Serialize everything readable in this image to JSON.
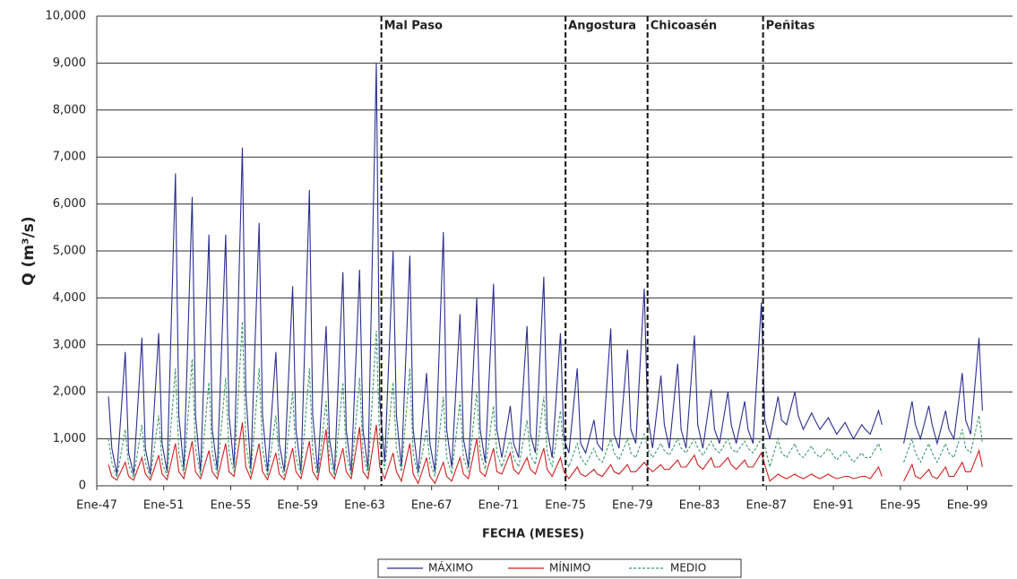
{
  "chart_data": {
    "type": "line",
    "xlabel": "FECHA (MESES)",
    "ylabel": "Q (m³/s)",
    "x": [
      1947.7,
      1947.9,
      1948.2,
      1948.7,
      1948.9,
      1949.2,
      1949.7,
      1949.9,
      1950.2,
      1950.7,
      1950.9,
      1951.2,
      1951.7,
      1951.9,
      1952.2,
      1952.7,
      1952.9,
      1953.2,
      1953.7,
      1953.9,
      1954.2,
      1954.7,
      1954.9,
      1955.2,
      1955.7,
      1955.9,
      1956.2,
      1956.7,
      1956.9,
      1957.2,
      1957.7,
      1957.9,
      1958.2,
      1958.7,
      1958.9,
      1959.2,
      1959.7,
      1959.9,
      1960.2,
      1960.7,
      1960.9,
      1961.2,
      1961.7,
      1961.9,
      1962.2,
      1962.7,
      1962.9,
      1963.2,
      1963.7,
      1963.9,
      1964.2,
      1964.7,
      1964.9,
      1965.2,
      1965.7,
      1965.9,
      1966.2,
      1966.7,
      1966.9,
      1967.2,
      1967.7,
      1967.9,
      1968.2,
      1968.7,
      1968.9,
      1969.2,
      1969.7,
      1969.9,
      1970.2,
      1970.7,
      1970.9,
      1971.2,
      1971.7,
      1971.9,
      1972.2,
      1972.7,
      1972.9,
      1973.2,
      1973.7,
      1973.9,
      1974.2,
      1974.7,
      1974.9,
      1975.2,
      1975.7,
      1975.9,
      1976.2,
      1976.7,
      1976.9,
      1977.2,
      1977.7,
      1977.9,
      1978.2,
      1978.7,
      1978.9,
      1979.2,
      1979.7,
      1979.9,
      1980.2,
      1980.7,
      1980.9,
      1981.2,
      1981.7,
      1981.9,
      1982.2,
      1982.7,
      1982.9,
      1983.2,
      1983.7,
      1983.9,
      1984.2,
      1984.7,
      1984.9,
      1985.2,
      1985.7,
      1985.9,
      1986.2,
      1986.7,
      1986.9,
      1987.2,
      1987.7,
      1987.9,
      1988.2,
      1988.7,
      1988.9,
      1989.2,
      1989.7,
      1989.9,
      1990.2,
      1990.7,
      1990.9,
      1991.2,
      1991.7,
      1991.9,
      1992.2,
      1992.7,
      1992.9,
      1993.2,
      1993.7,
      1993.9,
      1994.2,
      1994.7,
      1994.9,
      1995.2,
      1995.7,
      1995.9,
      1996.2,
      1996.7,
      1996.9,
      1997.2,
      1997.7,
      1997.9,
      1998.2,
      1998.7,
      1998.9,
      1999.2,
      1999.7,
      1999.9
    ],
    "series": [
      {
        "name": "MÁXIMO",
        "color": "#2b2f8f",
        "line_style": "solid",
        "values": [
          1900,
          800,
          250,
          2850,
          700,
          250,
          3150,
          800,
          250,
          3250,
          900,
          300,
          6650,
          1500,
          350,
          6150,
          1500,
          300,
          5350,
          1200,
          350,
          5350,
          1500,
          400,
          7200,
          2000,
          350,
          5600,
          1500,
          300,
          2850,
          900,
          300,
          4250,
          1200,
          300,
          6300,
          1500,
          300,
          3400,
          1000,
          300,
          4550,
          1200,
          300,
          4600,
          1200,
          350,
          9000,
          1800,
          500,
          5000,
          1500,
          400,
          4900,
          1200,
          300,
          2400,
          900,
          300,
          5400,
          1200,
          400,
          3650,
          1000,
          400,
          4000,
          1200,
          500,
          4300,
          1200,
          600,
          1700,
          900,
          600,
          3400,
          1100,
          700,
          4450,
          1200,
          600,
          3250,
          1000,
          700,
          2500,
          900,
          700,
          1400,
          900,
          750,
          3350,
          1100,
          800,
          2900,
          1200,
          900,
          4200,
          1500,
          800,
          2350,
          1300,
          800,
          2600,
          1200,
          800,
          3200,
          1300,
          800,
          2050,
          1200,
          900,
          2000,
          1300,
          900,
          1800,
          1200,
          900,
          3900,
          1400,
          1000,
          1900,
          1400,
          1300,
          2000,
          1500,
          1200,
          1550,
          1400,
          1200,
          1450,
          1300,
          1100,
          1350,
          1200,
          1000,
          1300,
          1200,
          1100,
          1600,
          1300,
          null,
          null,
          null,
          900,
          1800,
          1300,
          1000,
          1700,
          1300,
          900,
          1600,
          1200,
          1000,
          2400,
          1400,
          1100,
          3150,
          1600
        ]
      },
      {
        "name": "MÍNIMO",
        "color": "#d02020",
        "line_style": "solid",
        "values": [
          450,
          200,
          120,
          500,
          200,
          120,
          600,
          250,
          120,
          650,
          250,
          130,
          900,
          300,
          150,
          950,
          300,
          150,
          750,
          300,
          150,
          900,
          300,
          200,
          1350,
          400,
          150,
          900,
          300,
          130,
          700,
          250,
          130,
          800,
          300,
          150,
          950,
          300,
          130,
          1200,
          300,
          150,
          800,
          300,
          150,
          1250,
          300,
          150,
          1300,
          400,
          150,
          700,
          300,
          100,
          900,
          250,
          50,
          600,
          200,
          50,
          500,
          200,
          100,
          600,
          250,
          150,
          1000,
          300,
          200,
          800,
          300,
          250,
          700,
          350,
          250,
          600,
          350,
          250,
          800,
          350,
          200,
          600,
          300,
          150,
          400,
          250,
          200,
          350,
          250,
          200,
          450,
          300,
          250,
          450,
          300,
          300,
          500,
          400,
          300,
          450,
          350,
          350,
          550,
          400,
          400,
          650,
          450,
          350,
          600,
          400,
          400,
          600,
          450,
          350,
          550,
          400,
          400,
          700,
          450,
          100,
          250,
          200,
          150,
          250,
          200,
          150,
          250,
          200,
          150,
          250,
          200,
          150,
          200,
          200,
          150,
          200,
          200,
          150,
          400,
          200,
          null,
          null,
          null,
          100,
          450,
          200,
          150,
          350,
          200,
          150,
          400,
          200,
          200,
          500,
          300,
          300,
          750,
          400
        ]
      },
      {
        "name": "MEDIO",
        "color": "#3a9a6a",
        "line_style": "dashed",
        "values": [
          1000,
          500,
          180,
          1200,
          450,
          180,
          1300,
          500,
          180,
          1500,
          500,
          200,
          2500,
          700,
          250,
          2700,
          800,
          220,
          2200,
          700,
          250,
          2300,
          700,
          300,
          3500,
          900,
          250,
          2500,
          800,
          200,
          1500,
          500,
          220,
          2000,
          600,
          250,
          2500,
          700,
          200,
          1800,
          600,
          220,
          2200,
          700,
          220,
          2300,
          700,
          250,
          3300,
          900,
          350,
          2200,
          800,
          300,
          2500,
          700,
          200,
          1200,
          500,
          200,
          1900,
          600,
          250,
          1800,
          600,
          300,
          2000,
          700,
          350,
          1700,
          700,
          400,
          1000,
          600,
          400,
          1400,
          650,
          450,
          1900,
          700,
          400,
          1600,
          650,
          400,
          900,
          600,
          450,
          800,
          600,
          500,
          1000,
          700,
          550,
          1000,
          700,
          600,
          1100,
          800,
          600,
          900,
          750,
          650,
          1000,
          800,
          700,
          1000,
          800,
          650,
          950,
          800,
          700,
          1000,
          800,
          700,
          950,
          800,
          700,
          1000,
          850,
          400,
          1000,
          700,
          600,
          900,
          700,
          600,
          850,
          700,
          600,
          800,
          700,
          550,
          750,
          650,
          500,
          700,
          600,
          600,
          900,
          700,
          null,
          null,
          null,
          500,
          1000,
          700,
          500,
          900,
          700,
          500,
          900,
          700,
          600,
          1200,
          800,
          700,
          1500,
          900
        ]
      }
    ],
    "events": [
      {
        "label": "Mal Paso",
        "x": 1964
      },
      {
        "label": "Angostura",
        "x": 1975
      },
      {
        "label": "Chicoasén",
        "x": 1979.9
      },
      {
        "label": "Peñitas",
        "x": 1986.8
      }
    ],
    "xlim": [
      1947,
      2001.7
    ],
    "xticks": [
      {
        "value": 1947,
        "label": "Ene-47"
      },
      {
        "value": 1951,
        "label": "Ene-51"
      },
      {
        "value": 1955,
        "label": "Ene-55"
      },
      {
        "value": 1959,
        "label": "Ene-59"
      },
      {
        "value": 1963,
        "label": "Ene-63"
      },
      {
        "value": 1967,
        "label": "Ene-67"
      },
      {
        "value": 1971,
        "label": "Ene-71"
      },
      {
        "value": 1975,
        "label": "Ene-75"
      },
      {
        "value": 1979,
        "label": "Ene-79"
      },
      {
        "value": 1983,
        "label": "Ene-83"
      },
      {
        "value": 1987,
        "label": "Ene-87"
      },
      {
        "value": 1991,
        "label": "Ene-91"
      },
      {
        "value": 1995,
        "label": "Ene-95"
      },
      {
        "value": 1999,
        "label": "Ene-99"
      }
    ],
    "ylim": [
      0,
      10000
    ],
    "yticks": [
      0,
      {
        "value": 1000,
        "label": "1,000"
      },
      {
        "value": 2000,
        "label": "2,000"
      },
      {
        "value": 3000,
        "label": "3,000"
      },
      {
        "value": 4000,
        "label": "4,000"
      },
      {
        "value": 5000,
        "label": "5,000"
      },
      {
        "value": 6000,
        "label": "6,000"
      },
      {
        "value": 7000,
        "label": "7,000"
      },
      {
        "value": 8000,
        "label": "8,000"
      },
      {
        "value": 9000,
        "label": "9,000"
      },
      {
        "value": 10000,
        "label": "10,000"
      }
    ],
    "grid": true,
    "legend": "bottom"
  }
}
